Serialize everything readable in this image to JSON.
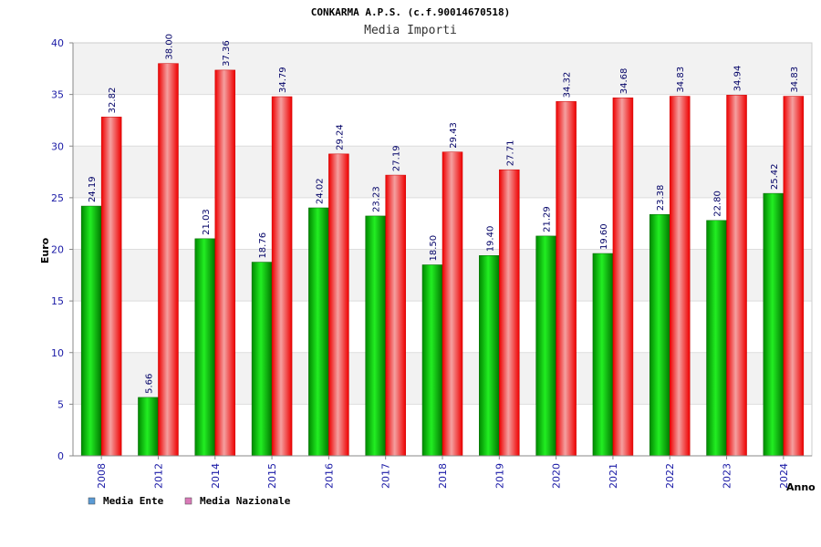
{
  "chart_data": {
    "type": "bar",
    "title": "CONKARMA A.P.S. (c.f.90014670518)",
    "subtitle": "Media Importi",
    "xlabel": "Anno",
    "ylabel": "Euro",
    "ylim": [
      0,
      40
    ],
    "yticks": [
      0,
      5,
      10,
      15,
      20,
      25,
      30,
      35,
      40
    ],
    "grid": true,
    "legend_position": "bottom-left",
    "categories": [
      "2008",
      "2012",
      "2014",
      "2015",
      "2016",
      "2017",
      "2018",
      "2019",
      "2020",
      "2021",
      "2022",
      "2023",
      "2024"
    ],
    "series": [
      {
        "name": "Media Ente",
        "color": "#00b000",
        "legend_color": "#5b9bd5",
        "values": [
          24.19,
          5.66,
          21.03,
          18.76,
          24.02,
          23.23,
          18.5,
          19.4,
          21.29,
          19.6,
          23.38,
          22.8,
          25.42
        ],
        "labels": [
          "24.19",
          "5.66",
          "21.03",
          "18.76",
          "24.02",
          "23.23",
          "18.50",
          "19.40",
          "21.29",
          "19.60",
          "23.38",
          "22.80",
          "25.42"
        ]
      },
      {
        "name": "Media Nazionale",
        "color": "#ee1111",
        "legend_color": "#d97ab8",
        "values": [
          32.82,
          38.0,
          37.36,
          34.79,
          29.24,
          27.19,
          29.43,
          27.71,
          34.32,
          34.68,
          34.83,
          34.94,
          34.83
        ],
        "labels": [
          "32.82",
          "38.00",
          "37.36",
          "34.79",
          "29.24",
          "27.19",
          "29.43",
          "27.71",
          "34.32",
          "34.68",
          "34.83",
          "34.94",
          "34.83"
        ]
      }
    ]
  }
}
